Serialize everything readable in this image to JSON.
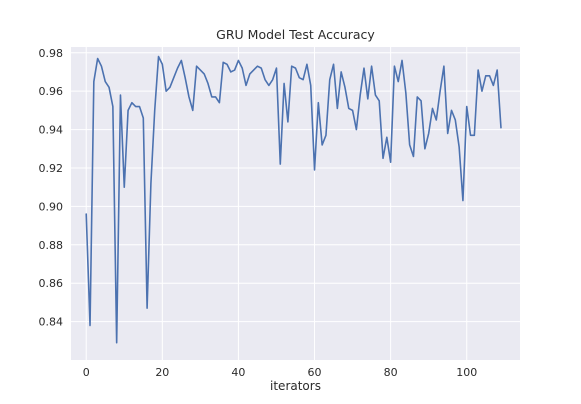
{
  "chart_data": {
    "type": "line",
    "title": "GRU Model Test Accuracy",
    "xlabel": "iterators",
    "ylabel": "",
    "xlim": [
      -4,
      114
    ],
    "ylim": [
      0.82,
      0.983
    ],
    "xticks": [
      0,
      20,
      40,
      60,
      80,
      100
    ],
    "xtick_labels": [
      "0",
      "20",
      "40",
      "60",
      "80",
      "100"
    ],
    "yticks": [
      0.84,
      0.86,
      0.88,
      0.9,
      0.92,
      0.94,
      0.96,
      0.98
    ],
    "ytick_labels": [
      "0.84",
      "0.86",
      "0.88",
      "0.90",
      "0.92",
      "0.94",
      "0.96",
      "0.98"
    ],
    "grid": true,
    "background_color": "#EAEAF2",
    "grid_color": "#FFFFFF",
    "series": [
      {
        "color": "#4C72B0",
        "x": [
          0,
          1,
          2,
          3,
          4,
          5,
          6,
          7,
          8,
          9,
          10,
          11,
          12,
          13,
          14,
          15,
          16,
          17,
          18,
          19,
          20,
          21,
          22,
          23,
          24,
          25,
          26,
          27,
          28,
          29,
          30,
          31,
          32,
          33,
          34,
          35,
          36,
          37,
          38,
          39,
          40,
          41,
          42,
          43,
          44,
          45,
          46,
          47,
          48,
          49,
          50,
          51,
          52,
          53,
          54,
          55,
          56,
          57,
          58,
          59,
          60,
          61,
          62,
          63,
          64,
          65,
          66,
          67,
          68,
          69,
          70,
          71,
          72,
          73,
          74,
          75,
          76,
          77,
          78,
          79,
          80,
          81,
          82,
          83,
          84,
          85,
          86,
          87,
          88,
          89,
          90,
          91,
          92,
          93,
          94,
          95,
          96,
          97,
          98,
          99,
          100,
          101,
          102,
          103,
          104,
          105,
          106,
          107,
          108,
          109
        ],
        "values": [
          0.896,
          0.838,
          0.965,
          0.977,
          0.973,
          0.965,
          0.962,
          0.952,
          0.829,
          0.958,
          0.91,
          0.95,
          0.954,
          0.952,
          0.952,
          0.946,
          0.847,
          0.912,
          0.95,
          0.978,
          0.974,
          0.96,
          0.962,
          0.967,
          0.972,
          0.976,
          0.967,
          0.957,
          0.95,
          0.973,
          0.971,
          0.969,
          0.964,
          0.957,
          0.957,
          0.954,
          0.975,
          0.974,
          0.97,
          0.971,
          0.976,
          0.972,
          0.963,
          0.969,
          0.971,
          0.973,
          0.972,
          0.966,
          0.963,
          0.966,
          0.972,
          0.922,
          0.964,
          0.944,
          0.973,
          0.972,
          0.967,
          0.966,
          0.974,
          0.963,
          0.919,
          0.954,
          0.932,
          0.937,
          0.966,
          0.974,
          0.951,
          0.97,
          0.962,
          0.951,
          0.95,
          0.94,
          0.958,
          0.972,
          0.956,
          0.973,
          0.958,
          0.955,
          0.925,
          0.936,
          0.923,
          0.973,
          0.965,
          0.976,
          0.959,
          0.932,
          0.926,
          0.957,
          0.955,
          0.93,
          0.938,
          0.951,
          0.945,
          0.96,
          0.973,
          0.938,
          0.95,
          0.945,
          0.931,
          0.903,
          0.952,
          0.937,
          0.937,
          0.971,
          0.96,
          0.968,
          0.968,
          0.963,
          0.971,
          0.941
        ]
      }
    ]
  }
}
